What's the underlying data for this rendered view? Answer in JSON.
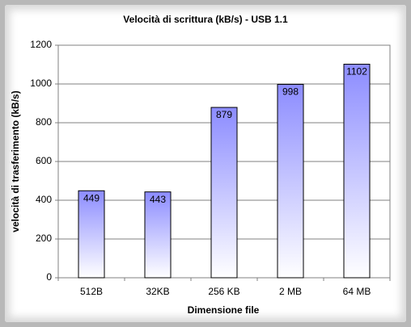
{
  "chart_data": {
    "type": "bar",
    "title": "Velocità di scrittura (kB/s) - USB 1.1",
    "x_label": "Dimensione file",
    "y_label": "velocità di trasferimento (kB/s)",
    "categories": [
      "512B",
      "32KB",
      "256 KB",
      "2 MB",
      "64 MB"
    ],
    "values": [
      449,
      443,
      879,
      998,
      1102
    ],
    "color": "#8c8cff",
    "ylim": [
      0,
      1200
    ],
    "yticks": [
      0,
      200,
      400,
      600,
      800,
      1000,
      1200
    ],
    "grid": true
  }
}
